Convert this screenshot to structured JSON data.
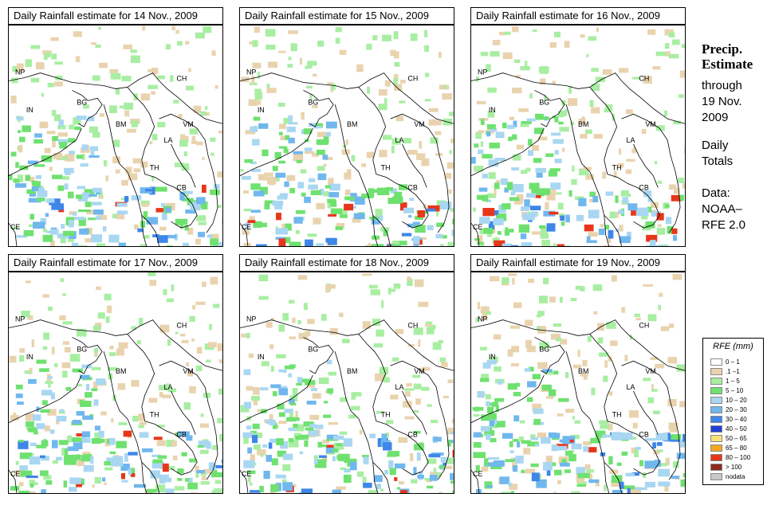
{
  "panels": [
    {
      "title": "Daily Rainfall estimate for  14 Nov., 2009"
    },
    {
      "title": "Daily Rainfall estimate for  15 Nov., 2009"
    },
    {
      "title": "Daily Rainfall estimate for  16 Nov., 2009"
    },
    {
      "title": "Daily Rainfall estimate for  17 Nov., 2009"
    },
    {
      "title": "Daily Rainfall estimate for  18 Nov., 2009"
    },
    {
      "title": "Daily Rainfall estimate for  19 Nov., 2009"
    }
  ],
  "country_labels": {
    "np": "NP",
    "in": "IN",
    "bg": "BG",
    "bm": "BM",
    "ch": "CH",
    "vm": "VM",
    "la": "LA",
    "th": "TH",
    "cb": "CB",
    "ce": "CE"
  },
  "sidebar": {
    "title_line1": "Precip.",
    "title_line2": "Estimate",
    "through": "through",
    "date_line1": "19 Nov.",
    "date_line2": "2009",
    "daily": "Daily",
    "totals": "Totals",
    "data_label": "Data:",
    "source_line1": "NOAA–",
    "source_line2": "RFE 2.0"
  },
  "legend": {
    "title": "RFE (mm)",
    "items": [
      {
        "label": "0 – 1",
        "color": "#ffffff"
      },
      {
        "label": ".1 –1",
        "color": "#e9d3ae"
      },
      {
        "label": "1 – 5",
        "color": "#a8eea2"
      },
      {
        "label": "5 – 10",
        "color": "#6fe16f"
      },
      {
        "label": "10 – 20",
        "color": "#a9d7f2"
      },
      {
        "label": "20 – 30",
        "color": "#70b7ee"
      },
      {
        "label": "30 – 40",
        "color": "#3e86e8"
      },
      {
        "label": "40 – 50",
        "color": "#1f3fd6"
      },
      {
        "label": "50 – 65",
        "color": "#f7e27a"
      },
      {
        "label": "65 – 80",
        "color": "#f5a720"
      },
      {
        "label": "80 – 100",
        "color": "#e8361a"
      },
      {
        "label": "> 100",
        "color": "#8e2a1c"
      },
      {
        "label": "nodata",
        "color": "#c8c8c8"
      }
    ]
  }
}
